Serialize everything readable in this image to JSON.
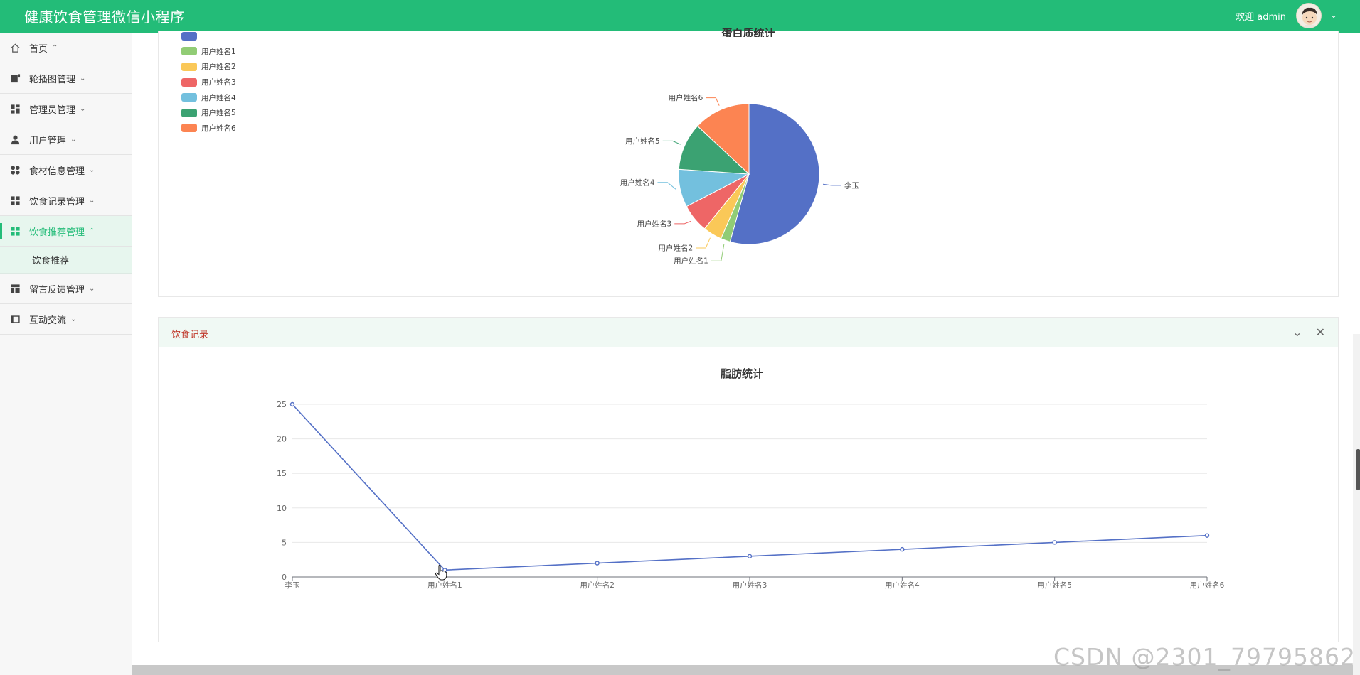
{
  "app": {
    "title": "健康饮食管理微信小程序",
    "welcome": "欢迎 admin"
  },
  "sidebar": {
    "items": [
      {
        "label": "首页",
        "chevron": "⌃",
        "icon": "home-icon"
      },
      {
        "label": "轮播图管理",
        "chevron": "⌄",
        "icon": "carousel-icon"
      },
      {
        "label": "管理员管理",
        "chevron": "⌄",
        "icon": "admin-icon"
      },
      {
        "label": "用户管理",
        "chevron": "⌄",
        "icon": "user-icon"
      },
      {
        "label": "食材信息管理",
        "chevron": "⌄",
        "icon": "ingredients-icon"
      },
      {
        "label": "饮食记录管理",
        "chevron": "⌄",
        "icon": "records-icon"
      },
      {
        "label": "饮食推荐管理",
        "chevron": "⌃",
        "icon": "recommend-icon",
        "active": true
      },
      {
        "label": "留言反馈管理",
        "chevron": "⌄",
        "icon": "feedback-icon"
      },
      {
        "label": "互动交流",
        "chevron": "⌄",
        "icon": "forum-icon"
      }
    ],
    "submenu": {
      "label": "饮食推荐"
    }
  },
  "card2": {
    "title": "饮食记录",
    "collapse_glyph": "⌄",
    "close_glyph": "✕"
  },
  "colors": {
    "brand": "#23bc78",
    "series_line": "#5470c6"
  },
  "chart_data": [
    {
      "type": "pie",
      "title": "蛋白质统计",
      "legend_position": "top-left",
      "categories": [
        "李玉",
        "用户姓名1",
        "用户姓名2",
        "用户姓名3",
        "用户姓名4",
        "用户姓名5",
        "用户姓名6"
      ],
      "values": [
        25,
        1,
        2,
        3,
        4,
        5,
        6
      ],
      "colors": [
        "#5470c6",
        "#91cc75",
        "#fac858",
        "#ee6666",
        "#73c0de",
        "#3ba272",
        "#fc8452"
      ]
    },
    {
      "type": "line",
      "title": "脂肪统计",
      "categories": [
        "李玉",
        "用户姓名1",
        "用户姓名2",
        "用户姓名3",
        "用户姓名4",
        "用户姓名5",
        "用户姓名6"
      ],
      "series": [
        {
          "values": [
            25,
            1,
            2,
            3,
            4,
            5,
            6
          ]
        }
      ],
      "ylim": [
        0,
        25
      ],
      "yticks": [
        0,
        5,
        10,
        15,
        20,
        25
      ],
      "grid": true
    }
  ],
  "watermark": "CSDN @2301_79795862"
}
